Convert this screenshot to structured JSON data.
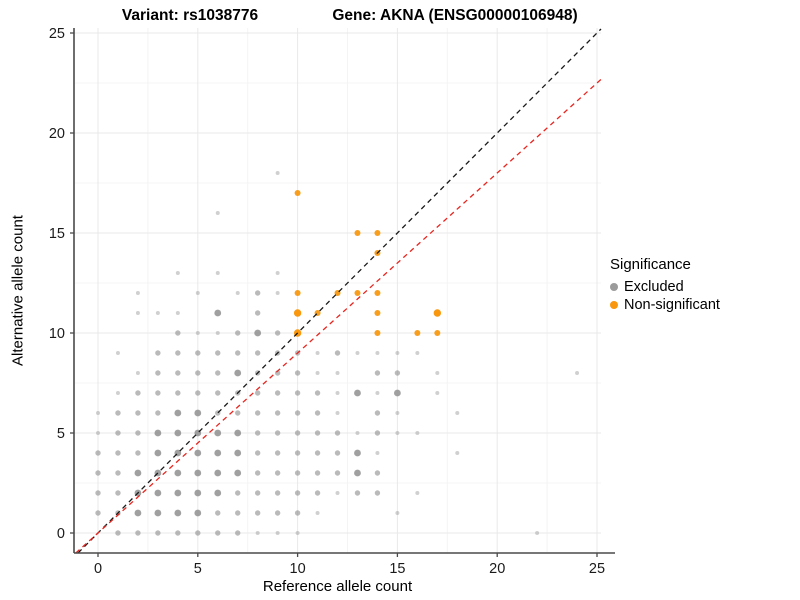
{
  "header": {
    "title_variant": "Variant: rs1038776",
    "title_gene": "Gene: AKNA (ENSG00000106948)"
  },
  "legend": {
    "title": "Significance",
    "items": [
      {
        "label": "Excluded",
        "color": "#9b9b9b"
      },
      {
        "label": "Non-significant",
        "color": "#f9980e"
      }
    ]
  },
  "colors": {
    "excluded": "#8f8f8f",
    "non_significant": "#f9980e",
    "identity_line": "#1a1a1a",
    "threshold_line": "#e8251f",
    "axis_line": "#4a4a4a",
    "tick_text": "#1a1a1a",
    "grid_major": "#e9e9e9",
    "grid_minor": "#f4f4f4"
  },
  "chart_data": {
    "type": "scatter",
    "title": "Variant: rs1038776 — Gene: AKNA (ENSG00000106948)",
    "xlabel": "Reference allele count",
    "ylabel": "Alternative allele count",
    "x_ticks": [
      0,
      5,
      10,
      15,
      20,
      25
    ],
    "y_ticks": [
      0,
      5,
      10,
      15,
      20,
      25
    ],
    "x_minor": [
      2.5,
      7.5,
      12.5,
      17.5,
      22.5
    ],
    "y_minor": [
      2.5,
      7.5,
      12.5,
      17.5,
      22.5
    ],
    "xlim": [
      -1.2,
      25.2
    ],
    "ylim": [
      -1.0,
      25.25
    ],
    "grid": true,
    "legend_position": "right",
    "series": [
      {
        "name": "Excluded",
        "color": "#8f8f8f",
        "points": [
          [
            1,
            0,
            2
          ],
          [
            2,
            0,
            2
          ],
          [
            3,
            0,
            2
          ],
          [
            4,
            0,
            2
          ],
          [
            5,
            0,
            2
          ],
          [
            6,
            0,
            2
          ],
          [
            7,
            0,
            2
          ],
          [
            8,
            0,
            1
          ],
          [
            9,
            0,
            1
          ],
          [
            10,
            0,
            1
          ],
          [
            22,
            0,
            1
          ],
          [
            0,
            1,
            2
          ],
          [
            1,
            1,
            2
          ],
          [
            2,
            1,
            3
          ],
          [
            3,
            1,
            3
          ],
          [
            4,
            1,
            3
          ],
          [
            5,
            1,
            3
          ],
          [
            6,
            1,
            2
          ],
          [
            7,
            1,
            2
          ],
          [
            8,
            1,
            2
          ],
          [
            9,
            1,
            2
          ],
          [
            10,
            1,
            2
          ],
          [
            11,
            1,
            1
          ],
          [
            15,
            1,
            1
          ],
          [
            0,
            2,
            2
          ],
          [
            1,
            2,
            2
          ],
          [
            2,
            2,
            3
          ],
          [
            3,
            2,
            3
          ],
          [
            4,
            2,
            3
          ],
          [
            5,
            2,
            3
          ],
          [
            6,
            2,
            3
          ],
          [
            7,
            2,
            2
          ],
          [
            8,
            2,
            2
          ],
          [
            9,
            2,
            2
          ],
          [
            10,
            2,
            2
          ],
          [
            11,
            2,
            2
          ],
          [
            12,
            2,
            1
          ],
          [
            13,
            2,
            2
          ],
          [
            14,
            2,
            2
          ],
          [
            16,
            2,
            1
          ],
          [
            0,
            3,
            2
          ],
          [
            1,
            3,
            2
          ],
          [
            2,
            3,
            3
          ],
          [
            3,
            3,
            3
          ],
          [
            4,
            3,
            3
          ],
          [
            5,
            3,
            3
          ],
          [
            6,
            3,
            3
          ],
          [
            7,
            3,
            3
          ],
          [
            8,
            3,
            2
          ],
          [
            9,
            3,
            2
          ],
          [
            10,
            3,
            2
          ],
          [
            11,
            3,
            2
          ],
          [
            12,
            3,
            2
          ],
          [
            13,
            3,
            3
          ],
          [
            14,
            3,
            2
          ],
          [
            0,
            4,
            2
          ],
          [
            1,
            4,
            2
          ],
          [
            2,
            4,
            2
          ],
          [
            3,
            4,
            3
          ],
          [
            4,
            4,
            3
          ],
          [
            5,
            4,
            3
          ],
          [
            6,
            4,
            3
          ],
          [
            7,
            4,
            3
          ],
          [
            8,
            4,
            2
          ],
          [
            9,
            4,
            2
          ],
          [
            10,
            4,
            2
          ],
          [
            11,
            4,
            2
          ],
          [
            12,
            4,
            2
          ],
          [
            13,
            4,
            3
          ],
          [
            14,
            4,
            1
          ],
          [
            18,
            4,
            1
          ],
          [
            0,
            5,
            1
          ],
          [
            1,
            5,
            2
          ],
          [
            2,
            5,
            2
          ],
          [
            3,
            5,
            3
          ],
          [
            4,
            5,
            3
          ],
          [
            5,
            5,
            3
          ],
          [
            6,
            5,
            3
          ],
          [
            7,
            5,
            3
          ],
          [
            8,
            5,
            2
          ],
          [
            9,
            5,
            2
          ],
          [
            10,
            5,
            2
          ],
          [
            11,
            5,
            2
          ],
          [
            12,
            5,
            2
          ],
          [
            13,
            5,
            1
          ],
          [
            14,
            5,
            2
          ],
          [
            15,
            5,
            1
          ],
          [
            16,
            5,
            1
          ],
          [
            0,
            6,
            1
          ],
          [
            1,
            6,
            2
          ],
          [
            2,
            6,
            2
          ],
          [
            3,
            6,
            2
          ],
          [
            4,
            6,
            3
          ],
          [
            5,
            6,
            3
          ],
          [
            6,
            6,
            2
          ],
          [
            7,
            6,
            2
          ],
          [
            8,
            6,
            2
          ],
          [
            9,
            6,
            2
          ],
          [
            10,
            6,
            2
          ],
          [
            11,
            6,
            2
          ],
          [
            12,
            6,
            1
          ],
          [
            14,
            6,
            2
          ],
          [
            15,
            6,
            1
          ],
          [
            18,
            6,
            1
          ],
          [
            1,
            7,
            1
          ],
          [
            2,
            7,
            2
          ],
          [
            3,
            7,
            2
          ],
          [
            4,
            7,
            2
          ],
          [
            5,
            7,
            2
          ],
          [
            6,
            7,
            2
          ],
          [
            7,
            7,
            2
          ],
          [
            8,
            7,
            2
          ],
          [
            9,
            7,
            2
          ],
          [
            10,
            7,
            2
          ],
          [
            11,
            7,
            2
          ],
          [
            12,
            7,
            1
          ],
          [
            13,
            7,
            3
          ],
          [
            14,
            7,
            1
          ],
          [
            15,
            7,
            3
          ],
          [
            17,
            7,
            1
          ],
          [
            2,
            8,
            1
          ],
          [
            3,
            8,
            2
          ],
          [
            4,
            8,
            2
          ],
          [
            5,
            8,
            2
          ],
          [
            6,
            8,
            2
          ],
          [
            7,
            8,
            3
          ],
          [
            8,
            8,
            2
          ],
          [
            9,
            8,
            2
          ],
          [
            10,
            8,
            2
          ],
          [
            11,
            8,
            1
          ],
          [
            12,
            8,
            1
          ],
          [
            14,
            8,
            2
          ],
          [
            15,
            8,
            2
          ],
          [
            17,
            8,
            1
          ],
          [
            24,
            8,
            1
          ],
          [
            1,
            9,
            1
          ],
          [
            3,
            9,
            2
          ],
          [
            4,
            9,
            2
          ],
          [
            5,
            9,
            2
          ],
          [
            6,
            9,
            2
          ],
          [
            7,
            9,
            2
          ],
          [
            8,
            9,
            2
          ],
          [
            9,
            9,
            2
          ],
          [
            10,
            9,
            2
          ],
          [
            11,
            9,
            1
          ],
          [
            12,
            9,
            2
          ],
          [
            13,
            9,
            1
          ],
          [
            14,
            9,
            1
          ],
          [
            15,
            9,
            1
          ],
          [
            16,
            9,
            1
          ],
          [
            4,
            10,
            2
          ],
          [
            5,
            10,
            1
          ],
          [
            6,
            10,
            1
          ],
          [
            7,
            10,
            2
          ],
          [
            8,
            10,
            3
          ],
          [
            9,
            10,
            2
          ],
          [
            2,
            11,
            1
          ],
          [
            3,
            11,
            1
          ],
          [
            4,
            11,
            1
          ],
          [
            6,
            11,
            3
          ],
          [
            8,
            11,
            2
          ],
          [
            2,
            12,
            1
          ],
          [
            5,
            12,
            1
          ],
          [
            7,
            12,
            1
          ],
          [
            8,
            12,
            2
          ],
          [
            9,
            12,
            1
          ],
          [
            4,
            13,
            1
          ],
          [
            6,
            13,
            1
          ],
          [
            9,
            13,
            1
          ],
          [
            6,
            16,
            1
          ],
          [
            9,
            18,
            1
          ]
        ]
      },
      {
        "name": "Non-significant",
        "color": "#f9980e",
        "points": [
          [
            10,
            10,
            3
          ],
          [
            10,
            11,
            3
          ],
          [
            10,
            12,
            2
          ],
          [
            10,
            17,
            2
          ],
          [
            11,
            11,
            2
          ],
          [
            12,
            12,
            2
          ],
          [
            13,
            12,
            2
          ],
          [
            13,
            15,
            2
          ],
          [
            14,
            10,
            2
          ],
          [
            14,
            11,
            2
          ],
          [
            14,
            12,
            2
          ],
          [
            14,
            14,
            2
          ],
          [
            14,
            15,
            2
          ],
          [
            16,
            10,
            2
          ],
          [
            17,
            10,
            2
          ],
          [
            17,
            11,
            3
          ]
        ]
      }
    ],
    "lines": [
      {
        "name": "identity",
        "slope": 1.0,
        "intercept": 0,
        "color": "#1a1a1a",
        "dashed": true
      },
      {
        "name": "threshold",
        "slope": 0.9,
        "intercept": 0,
        "color": "#e8251f",
        "dashed": true
      }
    ]
  }
}
